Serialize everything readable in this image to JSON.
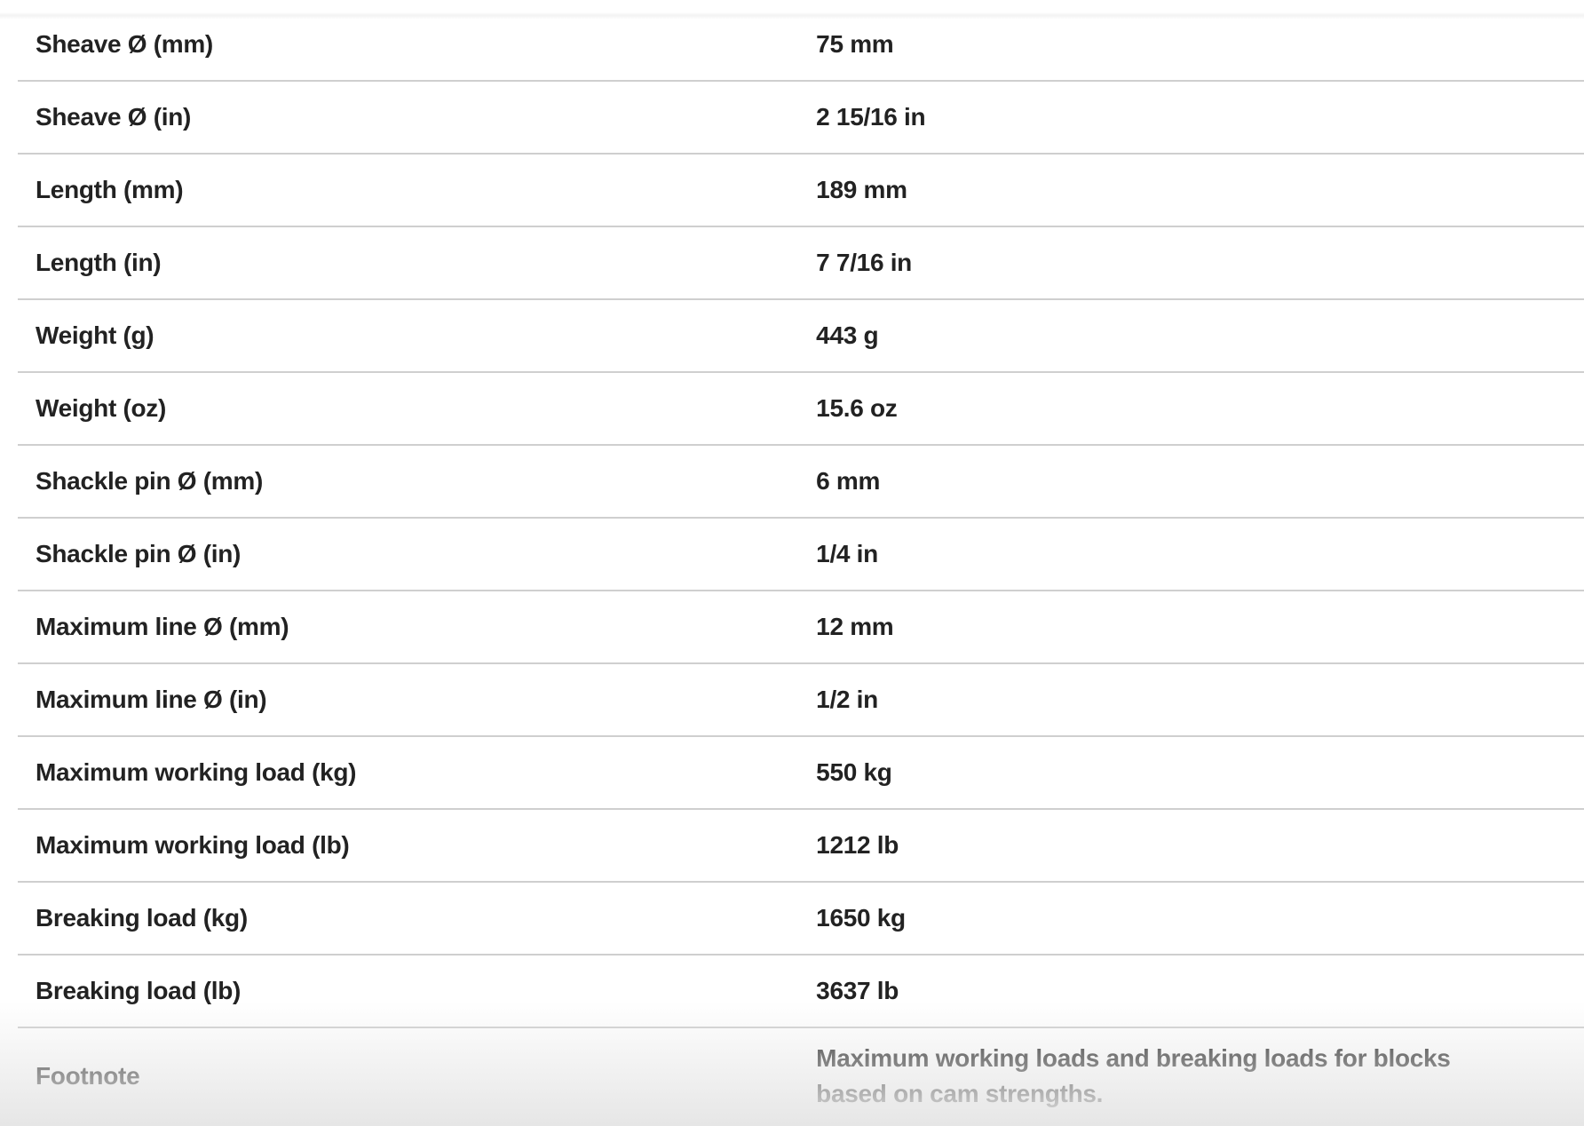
{
  "specs": [
    {
      "label": "Sheave Ø (mm)",
      "value": "75 mm"
    },
    {
      "label": "Sheave Ø (in)",
      "value": "2 15/16 in"
    },
    {
      "label": "Length (mm)",
      "value": "189 mm"
    },
    {
      "label": "Length (in)",
      "value": "7 7/16 in"
    },
    {
      "label": "Weight (g)",
      "value": "443 g"
    },
    {
      "label": "Weight (oz)",
      "value": "15.6 oz"
    },
    {
      "label": "Shackle pin Ø (mm)",
      "value": "6 mm"
    },
    {
      "label": "Shackle pin Ø (in)",
      "value": "1/4 in"
    },
    {
      "label": "Maximum line Ø (mm)",
      "value": "12 mm"
    },
    {
      "label": "Maximum line Ø (in)",
      "value": "1/2 in"
    },
    {
      "label": "Maximum working load (kg)",
      "value": "550 kg"
    },
    {
      "label": "Maximum working load (lb)",
      "value": "1212 lb"
    },
    {
      "label": "Breaking load (kg)",
      "value": "1650 kg"
    },
    {
      "label": "Breaking load (lb)",
      "value": "3637 lb"
    },
    {
      "label": "Footnote",
      "value": "Maximum working loads and breaking loads for blocks based on cam strengths."
    }
  ]
}
